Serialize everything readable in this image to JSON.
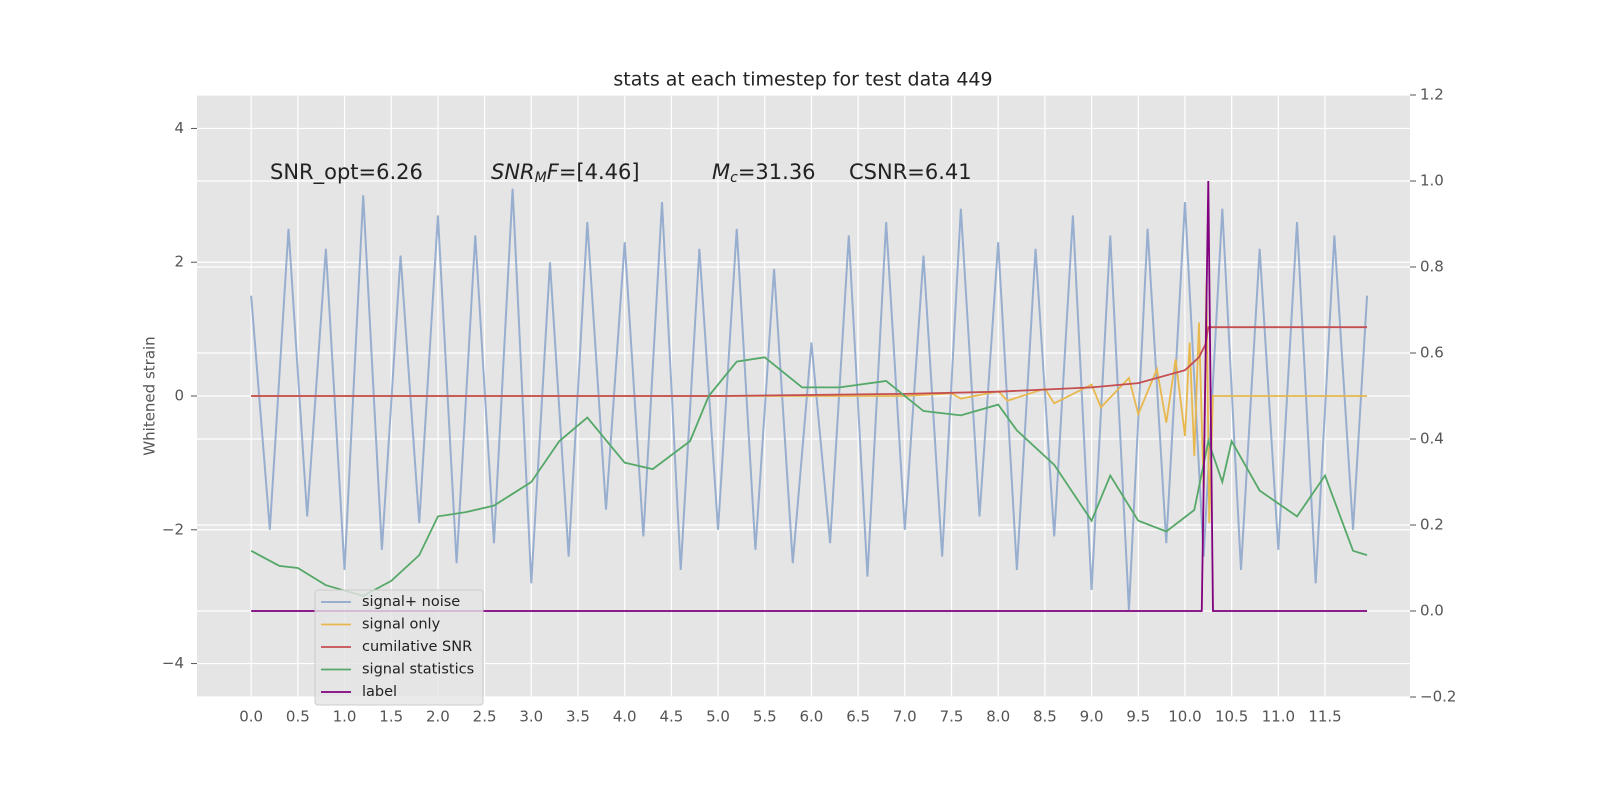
{
  "chart_data": {
    "type": "line",
    "title": "stats at each timestep for test data 449",
    "ylabel": "Whitened strain",
    "xlim": [
      -0.58,
      12.41
    ],
    "ylim": [
      -4.5,
      4.5
    ],
    "y2lim": [
      -0.2,
      1.2
    ],
    "xticks": [
      {
        "value": 0,
        "label": "0.0"
      },
      {
        "value": 0.5,
        "label": "0.5"
      },
      {
        "value": 1,
        "label": "1.0"
      },
      {
        "value": 1.5,
        "label": "1.5"
      },
      {
        "value": 2,
        "label": "2.0"
      },
      {
        "value": 2.5,
        "label": "2.5"
      },
      {
        "value": 3,
        "label": "3.0"
      },
      {
        "value": 3.5,
        "label": "3.5"
      },
      {
        "value": 4,
        "label": "4.0"
      },
      {
        "value": 4.5,
        "label": "4.5"
      },
      {
        "value": 5,
        "label": "5.0"
      },
      {
        "value": 5.5,
        "label": "5.5"
      },
      {
        "value": 6,
        "label": "6.0"
      },
      {
        "value": 6.5,
        "label": "6.5"
      },
      {
        "value": 7,
        "label": "7.0"
      },
      {
        "value": 7.5,
        "label": "7.5"
      },
      {
        "value": 8,
        "label": "8.0"
      },
      {
        "value": 8.5,
        "label": "8.5"
      },
      {
        "value": 9,
        "label": "9.0"
      },
      {
        "value": 9.5,
        "label": "9.5"
      },
      {
        "value": 10,
        "label": "10.0"
      },
      {
        "value": 10.5,
        "label": "10.5"
      },
      {
        "value": 11,
        "label": "11.0"
      },
      {
        "value": 11.5,
        "label": "11.5"
      }
    ],
    "yticks": [
      {
        "value": -4,
        "label": "−4"
      },
      {
        "value": -2,
        "label": "−2"
      },
      0,
      2,
      4
    ],
    "y2ticks": [
      {
        "value": -0.2,
        "label": "−0.2"
      },
      {
        "value": 0,
        "label": "0.0"
      },
      {
        "value": 0.2,
        "label": "0.2"
      },
      {
        "value": 0.4,
        "label": "0.4"
      },
      {
        "value": 0.6,
        "label": "0.6"
      },
      {
        "value": 0.8,
        "label": "0.8"
      },
      {
        "value": 1,
        "label": "1.0"
      },
      {
        "value": 1.2,
        "label": "1.2"
      }
    ],
    "grid": true,
    "legend_loc": "lower left",
    "annotations": [
      {
        "parts": [
          {
            "text": "SNR_opt=6.26"
          }
        ]
      },
      {
        "parts": [
          {
            "text": "SNR",
            "style": "italic"
          },
          {
            "text": "M",
            "style": "sub"
          },
          {
            "text": "F",
            "style": "italic"
          },
          {
            "text": "=[4.46]"
          }
        ]
      },
      {
        "parts": [
          {
            "text": "M",
            "style": "italic"
          },
          {
            "text": "c",
            "style": "sub"
          },
          {
            "text": "=31.36"
          }
        ]
      },
      {
        "parts": [
          {
            "text": "CSNR=6.41"
          }
        ]
      }
    ],
    "series": [
      {
        "name": "signal+ noise",
        "color": "#8fa7cc",
        "axis": "y",
        "x": [
          0,
          0.2,
          0.4,
          0.6,
          0.8,
          1,
          1.2,
          1.4,
          1.6,
          1.8,
          2,
          2.2,
          2.4,
          2.6,
          2.8,
          3,
          3.2,
          3.4,
          3.6,
          3.8,
          4,
          4.2,
          4.4,
          4.6,
          4.8,
          5,
          5.2,
          5.4,
          5.6,
          5.8,
          6,
          6.2,
          6.4,
          6.6,
          6.8,
          7,
          7.2,
          7.4,
          7.6,
          7.8,
          8,
          8.2,
          8.4,
          8.6,
          8.8,
          9,
          9.2,
          9.4,
          9.6,
          9.8,
          10,
          10.2,
          10.4,
          10.6,
          10.8,
          11,
          11.2,
          11.4,
          11.6,
          11.8,
          11.95
        ],
        "values": [
          1.5,
          -2.0,
          2.5,
          -1.8,
          2.2,
          -2.6,
          3.0,
          -2.3,
          2.1,
          -1.9,
          2.7,
          -2.5,
          2.4,
          -2.2,
          3.1,
          -2.8,
          2.0,
          -2.4,
          2.6,
          -1.7,
          2.3,
          -2.1,
          2.9,
          -2.6,
          2.2,
          -2.0,
          2.5,
          -2.3,
          1.9,
          -2.5,
          0.8,
          -2.2,
          2.4,
          -2.7,
          2.6,
          -2.0,
          2.1,
          -2.4,
          2.8,
          -1.8,
          2.3,
          -2.6,
          2.2,
          -2.1,
          2.7,
          -2.9,
          2.4,
          -3.2,
          2.5,
          -2.2,
          2.9,
          -2.4,
          2.8,
          -2.6,
          2.2,
          -2.3,
          2.6,
          -2.8,
          2.4,
          -2.0,
          1.5
        ]
      },
      {
        "name": "signal only",
        "color": "#e8b84f",
        "axis": "y",
        "x": [
          0,
          7.0,
          7.5,
          7.6,
          8.0,
          8.1,
          8.5,
          8.6,
          9.0,
          9.1,
          9.4,
          9.5,
          9.7,
          9.8,
          9.9,
          10.0,
          10.05,
          10.1,
          10.15,
          10.2,
          10.23,
          10.26,
          10.3,
          11.95
        ],
        "values": [
          0,
          0,
          0.04,
          -0.04,
          0.07,
          -0.07,
          0.11,
          -0.11,
          0.17,
          -0.17,
          0.27,
          -0.27,
          0.4,
          -0.4,
          0.55,
          -0.6,
          0.8,
          -0.9,
          1.1,
          -1.4,
          1.7,
          -1.9,
          0,
          0
        ]
      },
      {
        "name": "cumilative SNR",
        "color": "#c44e52",
        "axis": "y2",
        "x": [
          0,
          5,
          7,
          8,
          9,
          9.5,
          10,
          10.15,
          10.22,
          10.25,
          10.3,
          11.95
        ],
        "values": [
          0.5,
          0.5,
          0.505,
          0.51,
          0.52,
          0.53,
          0.56,
          0.59,
          0.62,
          0.66,
          0.66,
          0.66
        ]
      },
      {
        "name": "signal statistics",
        "color": "#55a868",
        "axis": "y2",
        "x": [
          0,
          0.3,
          0.5,
          0.8,
          1.2,
          1.5,
          1.8,
          2.0,
          2.3,
          2.6,
          3.0,
          3.3,
          3.6,
          4.0,
          4.3,
          4.7,
          4.9,
          5.2,
          5.5,
          5.9,
          6.3,
          6.8,
          7.2,
          7.6,
          8.0,
          8.2,
          8.6,
          9.0,
          9.2,
          9.5,
          9.8,
          10.1,
          10.25,
          10.4,
          10.5,
          10.8,
          11.2,
          11.5,
          11.8,
          11.95
        ],
        "values": [
          0.14,
          0.105,
          0.1,
          0.06,
          0.035,
          0.07,
          0.13,
          0.22,
          0.23,
          0.245,
          0.3,
          0.395,
          0.45,
          0.345,
          0.33,
          0.395,
          0.5,
          0.58,
          0.59,
          0.52,
          0.52,
          0.535,
          0.465,
          0.455,
          0.48,
          0.42,
          0.34,
          0.21,
          0.315,
          0.21,
          0.185,
          0.235,
          0.395,
          0.3,
          0.395,
          0.28,
          0.22,
          0.315,
          0.14,
          0.13
        ]
      },
      {
        "name": "label",
        "color": "#800080",
        "axis": "y2",
        "x": [
          0,
          10.18,
          10.25,
          10.3,
          11.95
        ],
        "values": [
          0,
          0,
          1,
          0,
          0
        ]
      }
    ]
  }
}
